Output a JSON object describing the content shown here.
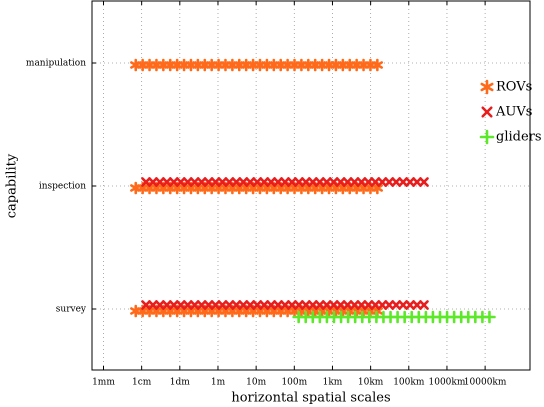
{
  "chart_data": {
    "type": "range",
    "xlabel": "horizontal spatial scales",
    "ylabel": "capability",
    "categories": [
      "survey",
      "inspection",
      "manipulation"
    ],
    "xscale": "log",
    "xlim": [
      0.0005,
      150000000
    ],
    "xticks": [
      {
        "value": 0.001,
        "label": "1mm"
      },
      {
        "value": 0.01,
        "label": "1cm"
      },
      {
        "value": 0.1,
        "label": "1dm"
      },
      {
        "value": 1,
        "label": "1m"
      },
      {
        "value": 10,
        "label": "10m"
      },
      {
        "value": 100,
        "label": "100m"
      },
      {
        "value": 1000,
        "label": "1km"
      },
      {
        "value": 10000,
        "label": "10km"
      },
      {
        "value": 100000,
        "label": "100km"
      },
      {
        "value": 1000000,
        "label": "1000km"
      },
      {
        "value": 10000000,
        "label": "10000km"
      }
    ],
    "grid": true,
    "legend": "right",
    "series": [
      {
        "name": "ROVs",
        "color": "#ff6a1a",
        "marker": "asterisk",
        "values": [
          [
            0.007,
            15000
          ],
          [
            0.007,
            15000
          ],
          [
            0.007,
            15000
          ]
        ]
      },
      {
        "name": "AUVs",
        "color": "#e81e1e",
        "marker": "x",
        "values": [
          [
            0.013,
            250000
          ],
          [
            0.013,
            250000
          ],
          null
        ]
      },
      {
        "name": "gliders",
        "color": "#5de82a",
        "marker": "plus",
        "values": [
          [
            130,
            13000000
          ],
          null,
          null
        ]
      }
    ]
  }
}
